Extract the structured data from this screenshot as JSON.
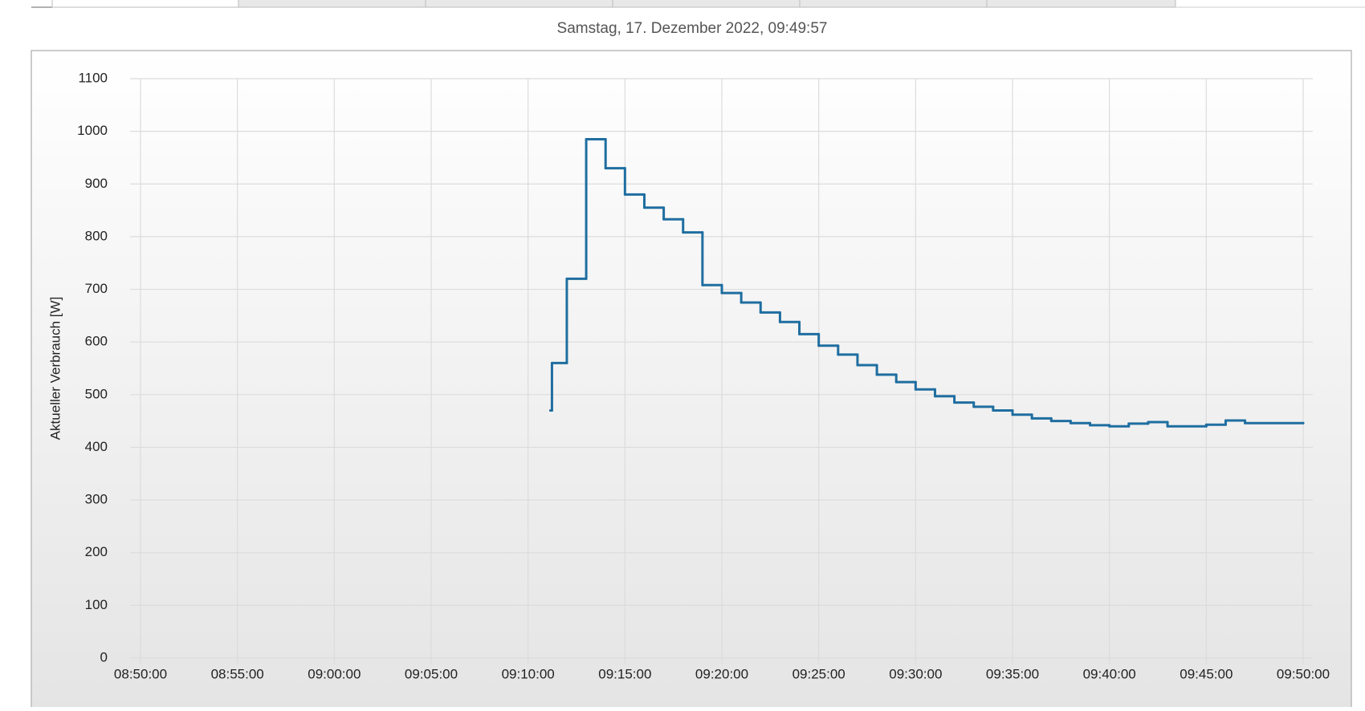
{
  "chart_data": {
    "type": "line",
    "step": true,
    "title": "Samstag, 17. Dezember 2022, 09:49:57",
    "y_label": "Aktueller Verbrauch [W]",
    "x": [
      "09:11:09",
      "09:11:14",
      "09:12:00",
      "09:13:00",
      "09:14:00",
      "09:15:00",
      "09:16:00",
      "09:17:00",
      "09:18:00",
      "09:19:00",
      "09:20:00",
      "09:21:00",
      "09:22:00",
      "09:23:00",
      "09:24:00",
      "09:25:00",
      "09:26:00",
      "09:27:00",
      "09:28:00",
      "09:29:00",
      "09:30:00",
      "09:31:00",
      "09:32:00",
      "09:33:00",
      "09:34:00",
      "09:35:00",
      "09:36:00",
      "09:37:00",
      "09:38:00",
      "09:39:00",
      "09:40:00",
      "09:41:00",
      "09:42:00",
      "09:43:00",
      "09:45:00",
      "09:46:00",
      "09:47:00",
      "09:50:00"
    ],
    "series": [
      {
        "name": "Aktueller Verbrauch",
        "color": "#1f6ea0",
        "values": [
          470,
          560,
          720,
          985,
          930,
          880,
          855,
          833,
          808,
          708,
          693,
          675,
          656,
          638,
          615,
          593,
          576,
          556,
          538,
          524,
          510,
          497,
          485,
          477,
          470,
          462,
          455,
          450,
          446,
          442,
          440,
          445,
          448,
          440,
          443,
          451,
          446,
          446
        ]
      }
    ],
    "xlim": [
      "08:50:00",
      "09:50:00"
    ],
    "xticks": [
      "08:50:00",
      "08:55:00",
      "09:00:00",
      "09:05:00",
      "09:10:00",
      "09:15:00",
      "09:20:00",
      "09:25:00",
      "09:30:00",
      "09:35:00",
      "09:40:00",
      "09:45:00",
      "09:50:00"
    ],
    "ylim": [
      0,
      1100
    ],
    "yticks": [
      0,
      100,
      200,
      300,
      400,
      500,
      600,
      700,
      800,
      900,
      1000,
      1100
    ],
    "grid": true
  }
}
